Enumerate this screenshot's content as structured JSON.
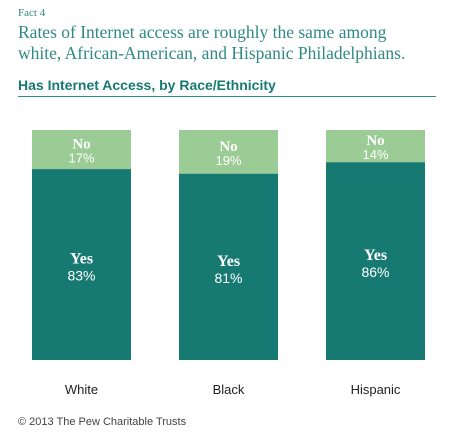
{
  "header": {
    "fact_label": "Fact 4",
    "headline_line1": "Rates of Internet access are roughly the same among",
    "headline_line2": "white, African-American, and Hispanic Philadelphians.",
    "subtitle": "Has Internet Access, by Race/Ethnicity"
  },
  "colors": {
    "yes": "#177a72",
    "no": "#9ccc96",
    "no_text": "#ffffff",
    "yes_text": "#ffffff"
  },
  "chart_data": {
    "type": "bar",
    "stacked": true,
    "categories": [
      "White",
      "Black",
      "Hispanic"
    ],
    "series": [
      {
        "name": "Yes",
        "values": [
          83,
          81,
          86
        ],
        "labels": [
          "83%",
          "81%",
          "86%"
        ]
      },
      {
        "name": "No",
        "values": [
          17,
          19,
          14
        ],
        "labels": [
          "17%",
          "19%",
          "14%"
        ]
      }
    ],
    "ylim": [
      0,
      100
    ],
    "grid": false,
    "legend": "none"
  },
  "footer": {
    "copyright": "© 2013 The Pew Charitable Trusts"
  }
}
